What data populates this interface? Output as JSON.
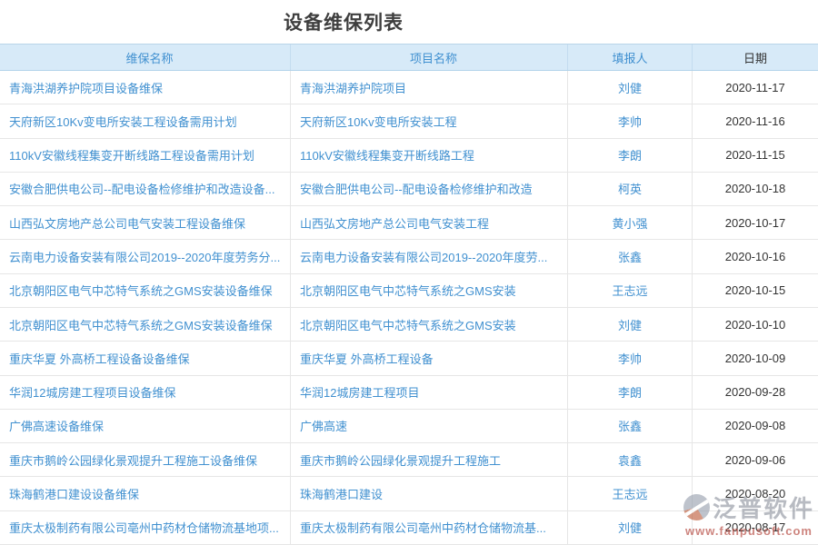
{
  "page": {
    "title": "设备维保列表"
  },
  "table": {
    "columns": [
      {
        "label": "维保名称"
      },
      {
        "label": "项目名称"
      },
      {
        "label": "填报人"
      },
      {
        "label": "日期"
      }
    ],
    "rows": [
      {
        "maintenance": "青海洪湖养护院项目设备维保",
        "project": "青海洪湖养护院项目",
        "reporter": "刘健",
        "date": "2020-11-17"
      },
      {
        "maintenance": "天府新区10Kv变电所安装工程设备需用计划",
        "project": "天府新区10Kv变电所安装工程",
        "reporter": "李帅",
        "date": "2020-11-16"
      },
      {
        "maintenance": "110kV安徽线程集变开断线路工程设备需用计划",
        "project": "110kV安徽线程集变开断线路工程",
        "reporter": "李朗",
        "date": "2020-11-15"
      },
      {
        "maintenance": "安徽合肥供电公司--配电设备检修维护和改造设备...",
        "project": "安徽合肥供电公司--配电设备检修维护和改造",
        "reporter": "柯英",
        "date": "2020-10-18"
      },
      {
        "maintenance": "山西弘文房地产总公司电气安装工程设备维保",
        "project": "山西弘文房地产总公司电气安装工程",
        "reporter": "黄小强",
        "date": "2020-10-17"
      },
      {
        "maintenance": "云南电力设备安装有限公司2019--2020年度劳务分...",
        "project": "云南电力设备安装有限公司2019--2020年度劳...",
        "reporter": "张鑫",
        "date": "2020-10-16"
      },
      {
        "maintenance": "北京朝阳区电气中芯特气系统之GMS安装设备维保",
        "project": "北京朝阳区电气中芯特气系统之GMS安装",
        "reporter": "王志远",
        "date": "2020-10-15"
      },
      {
        "maintenance": "北京朝阳区电气中芯特气系统之GMS安装设备维保",
        "project": "北京朝阳区电气中芯特气系统之GMS安装",
        "reporter": "刘健",
        "date": "2020-10-10"
      },
      {
        "maintenance": "重庆华夏 外高桥工程设备设备维保",
        "project": "重庆华夏 外高桥工程设备",
        "reporter": "李帅",
        "date": "2020-10-09"
      },
      {
        "maintenance": "华润12城房建工程项目设备维保",
        "project": "华润12城房建工程项目",
        "reporter": "李朗",
        "date": "2020-09-28"
      },
      {
        "maintenance": "广佛高速设备维保",
        "project": "广佛高速",
        "reporter": "张鑫",
        "date": "2020-09-08"
      },
      {
        "maintenance": "重庆市鹅岭公园绿化景观提升工程施工设备维保",
        "project": "重庆市鹅岭公园绿化景观提升工程施工",
        "reporter": "袁鑫",
        "date": "2020-09-06"
      },
      {
        "maintenance": "珠海鹤港口建设设备维保",
        "project": "珠海鹤港口建设",
        "reporter": "王志远",
        "date": "2020-08-20"
      },
      {
        "maintenance": "重庆太极制药有限公司亳州中药材仓储物流基地项...",
        "project": "重庆太极制药有限公司亳州中药材仓储物流基...",
        "reporter": "刘健",
        "date": "2020-08-17"
      }
    ]
  },
  "watermark": {
    "brand": "泛普软件",
    "url": "www.fanpusoft.com"
  },
  "colors": {
    "accent_blue": "#4090d0",
    "header_bg": "#d7eaf8",
    "header_text": "#45688c",
    "date_text": "#333333",
    "watermark_gray": "#8d939e",
    "watermark_red": "#b03a30"
  }
}
